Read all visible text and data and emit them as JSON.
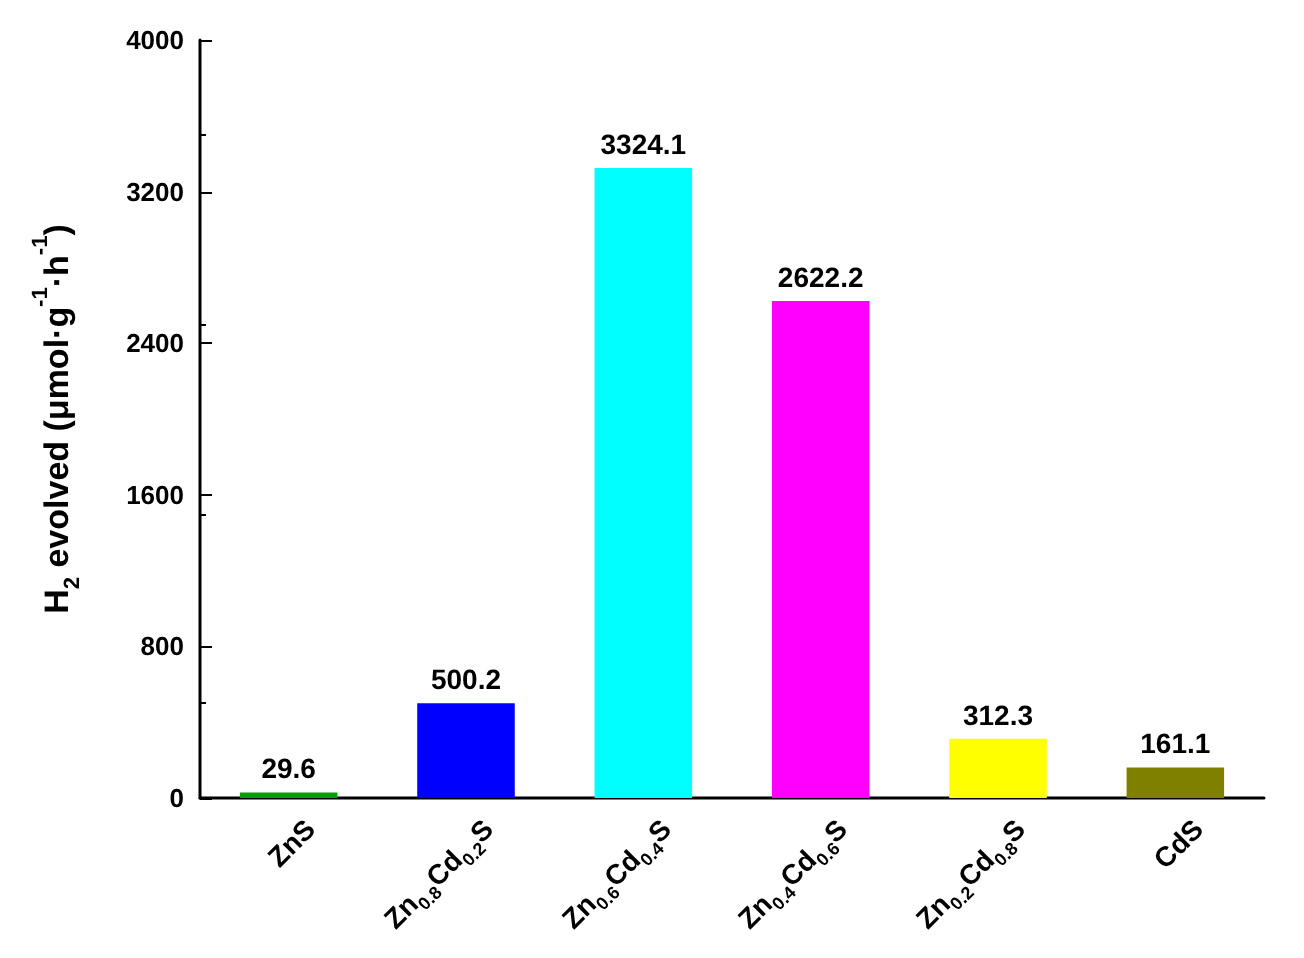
{
  "chart_data": {
    "type": "bar",
    "ylabel": "H$_{2}$ evolved (μmol·g$^{-1}$·h$^{-1}$)",
    "categories": [
      "ZnS",
      "Zn$_{0.8}$Cd$_{0.2}$S",
      "Zn$_{0.6}$Cd$_{0.4}$S",
      "Zn$_{0.4}$Cd$_{0.6}$S",
      "Zn$_{0.2}$Cd$_{0.8}$S",
      "CdS"
    ],
    "values": [
      29.6,
      500.2,
      3324.1,
      2622.2,
      312.3,
      161.1
    ],
    "colors": [
      "#00a000",
      "#0000ff",
      "#00ffff",
      "#ff00ff",
      "#ffff00",
      "#808000"
    ],
    "ylim": [
      0,
      4000
    ],
    "yticks": [
      0,
      800,
      1600,
      2400,
      3200,
      4000
    ],
    "grid": false,
    "data_labels": true
  }
}
